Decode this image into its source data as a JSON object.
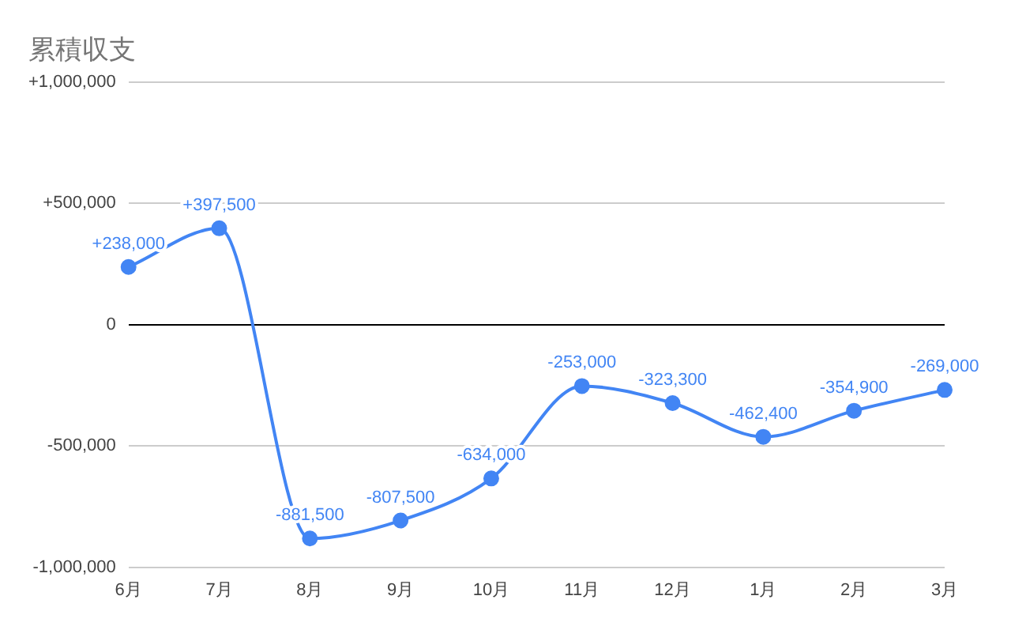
{
  "chart_data": {
    "type": "line",
    "title": "累積収支",
    "categories": [
      "6月",
      "7月",
      "8月",
      "9月",
      "10月",
      "11月",
      "12月",
      "1月",
      "2月",
      "3月"
    ],
    "series": [
      {
        "color": "#4285f4",
        "values": [
          238000,
          397500,
          -881500,
          -807500,
          -634000,
          -253000,
          -323300,
          -462400,
          -354900,
          -269000
        ],
        "value_labels": [
          "+238,000",
          "+397,500",
          "-881,500",
          "-807,500",
          "-634,000",
          "-253,000",
          "-323,300",
          "-462,400",
          "-354,900",
          "-269,000"
        ]
      }
    ],
    "ylim": [
      -1000000,
      1000000
    ],
    "yticks": [
      {
        "value": -1000000,
        "label": "-1,000,000"
      },
      {
        "value": -500000,
        "label": "-500,000"
      },
      0,
      {
        "value": 500000,
        "label": "+500,000"
      },
      {
        "value": 1000000,
        "label": "+1,000,000"
      }
    ],
    "grid": "y",
    "legend": false,
    "marker": "circle",
    "line_style": "solid"
  }
}
